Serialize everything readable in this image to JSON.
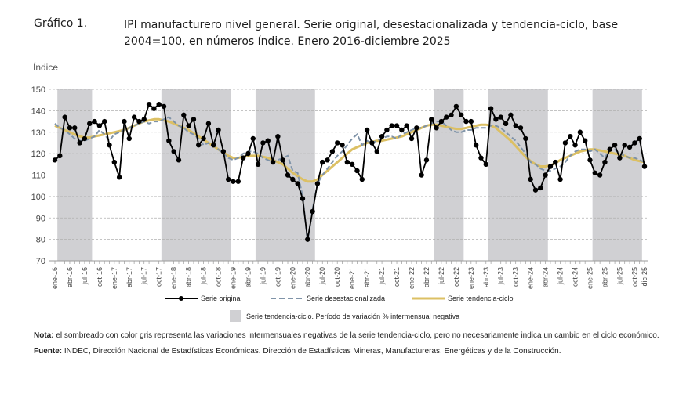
{
  "header": {
    "number": "Gráfico 1.",
    "title": "IPI manufacturero nivel general. Serie original, desestacionalizada y tendencia-ciclo, base 2004=100, en números índice. Enero 2016-diciembre 2025"
  },
  "colors": {
    "original": "#000000",
    "desestacionalizada": "#7f93a8",
    "tendencia": "#dcc064",
    "shade": "#d0d0d3",
    "grid": "#b0b0b0"
  },
  "notes": {
    "nota_label": "Nota:",
    "nota_text": " el sombreado con color gris representa las variaciones intermensuales negativas de la serie tendencia-ciclo, pero no necesariamente indica un cambio en el ciclo económico.",
    "fuente_label": "Fuente:",
    "fuente_text": " INDEC, Dirección Nacional de Estadísticas Económicas. Dirección de Estadísticas Mineras, Manufactureras, Energéticas y de la Construcción."
  },
  "chart_data": {
    "type": "line",
    "title": "IPI manufacturero nivel general. Serie original, desestacionalizada y tendencia-ciclo, base 2004=100, en números índice. Enero 2016-diciembre 2025",
    "xlabel": "",
    "ylabel": "Índice",
    "ylim": [
      70,
      150
    ],
    "yticks": [
      70,
      80,
      90,
      100,
      110,
      120,
      130,
      140,
      150
    ],
    "grid": "horizontal-dashed",
    "legend_position": "bottom",
    "x_tick_labels": [
      "ene-16",
      "abr-16",
      "jul-16",
      "oct-16",
      "ene-17",
      "abr-17",
      "jul-17",
      "oct-17",
      "ene-18",
      "abr-18",
      "jul-18",
      "oct-18",
      "ene-19",
      "abr-19",
      "jul-19",
      "oct-19",
      "ene-20",
      "abr-20",
      "jul-20",
      "oct-20",
      "ene-21",
      "abr-21",
      "jul-21",
      "oct-21",
      "ene-22",
      "abr-22",
      "jul-22",
      "oct-22",
      "ene-23",
      "abr-23",
      "jul-23",
      "oct-23",
      "ene-24",
      "abr-24",
      "jul-24",
      "oct-24",
      "ene-25",
      "abr-25",
      "jul-25",
      "oct-25",
      "dic-25"
    ],
    "x_tick_month_index": [
      0,
      3,
      6,
      9,
      12,
      15,
      18,
      21,
      24,
      27,
      30,
      33,
      36,
      39,
      42,
      45,
      48,
      51,
      54,
      57,
      60,
      63,
      66,
      69,
      72,
      75,
      78,
      81,
      84,
      87,
      90,
      93,
      96,
      99,
      102,
      105,
      108,
      111,
      114,
      117,
      119
    ],
    "n_months": 120,
    "shaded_periods_month_index": [
      [
        0.5,
        7.5
      ],
      [
        21.5,
        35.5
      ],
      [
        40.5,
        52.5
      ],
      [
        76.5,
        82.5
      ],
      [
        87.5,
        99.5
      ],
      [
        108.5,
        118.5
      ]
    ],
    "legend": [
      "Serie original",
      "Serie desestacionalizada",
      "Serie tendencia-ciclo",
      "Serie tendencia-ciclo. Período de variación % intermensual negativa"
    ],
    "series": [
      {
        "name": "Serie original",
        "values": [
          117,
          119,
          137,
          132,
          132,
          125,
          127,
          134,
          135,
          133,
          135,
          124,
          116,
          109,
          135,
          127,
          137,
          135,
          136,
          143,
          141,
          143,
          142,
          126,
          121,
          117,
          138,
          133,
          136,
          124,
          127,
          134,
          124,
          131,
          121,
          108,
          107,
          107,
          118,
          120,
          127,
          115,
          125,
          126,
          116,
          128,
          117,
          110,
          108,
          106,
          99,
          80,
          93,
          106,
          116,
          117,
          121,
          125,
          124,
          116,
          115,
          112,
          108,
          131,
          125,
          121,
          128,
          131,
          133,
          133,
          131,
          133,
          127,
          132,
          110,
          117,
          136,
          132,
          135,
          137,
          138,
          142,
          138,
          135,
          135,
          124,
          118,
          115,
          141,
          136,
          137,
          134,
          138,
          133,
          132,
          127,
          108,
          103,
          104,
          110,
          114,
          116,
          108,
          125,
          128,
          124,
          130,
          126,
          117,
          111,
          110,
          116,
          122,
          124,
          118,
          124,
          123,
          125,
          127,
          114
        ]
      },
      {
        "name": "Serie desestacionalizada",
        "values": [
          134,
          132,
          131,
          129,
          127,
          126,
          126,
          127,
          128,
          131,
          129,
          126,
          129,
          130,
          131,
          132,
          133,
          134,
          135,
          134,
          135,
          135,
          136,
          137,
          135,
          133,
          132,
          130,
          129,
          127,
          124,
          125,
          124,
          122,
          120,
          118,
          117,
          118,
          120,
          121,
          121,
          120,
          118,
          117,
          116,
          117,
          118,
          119,
          112,
          111,
          100,
          79,
          94,
          106,
          110,
          113,
          116,
          119,
          121,
          124,
          127,
          129,
          124,
          126,
          125,
          126,
          127,
          128,
          128,
          127,
          129,
          130,
          131,
          132,
          132,
          133,
          134,
          135,
          135,
          133,
          131,
          130,
          130,
          131,
          131,
          132,
          132,
          132,
          133,
          133,
          132,
          130,
          128,
          126,
          123,
          120,
          116,
          115,
          113,
          112,
          112,
          113,
          114,
          116,
          119,
          121,
          122,
          122,
          121,
          122,
          120,
          118,
          122,
          122,
          120,
          119,
          118,
          118,
          117,
          116
        ]
      },
      {
        "name": "Serie tendencia-ciclo",
        "values": [
          133,
          132,
          131,
          130,
          129,
          128,
          127.5,
          127.5,
          128,
          128.5,
          129,
          129.5,
          130,
          130.5,
          131,
          132,
          133,
          134,
          135,
          135.5,
          136,
          136,
          135.5,
          135,
          134,
          133,
          132,
          131,
          129.5,
          128,
          126.5,
          125,
          123.5,
          122,
          120.5,
          119,
          118,
          118,
          118.5,
          119,
          119,
          119,
          118.5,
          118,
          117,
          116,
          115,
          113,
          111,
          109.5,
          108,
          107,
          107,
          108,
          110,
          112,
          114,
          116,
          118,
          120,
          122,
          123,
          124,
          125,
          125.5,
          126,
          126,
          126.5,
          127,
          127.5,
          128,
          129,
          130,
          131,
          132,
          133,
          133.5,
          133.5,
          133,
          132.5,
          132,
          131.5,
          131.5,
          132,
          132.5,
          133,
          133.5,
          133.5,
          133,
          132,
          130,
          128,
          126,
          123.5,
          121,
          118.5,
          116.5,
          115,
          114,
          114,
          114.5,
          115.5,
          117,
          118,
          119,
          120,
          121,
          121.5,
          122,
          122,
          121.5,
          121,
          120.5,
          120,
          119.5,
          119,
          118,
          117,
          116.5,
          116
        ]
      }
    ]
  }
}
